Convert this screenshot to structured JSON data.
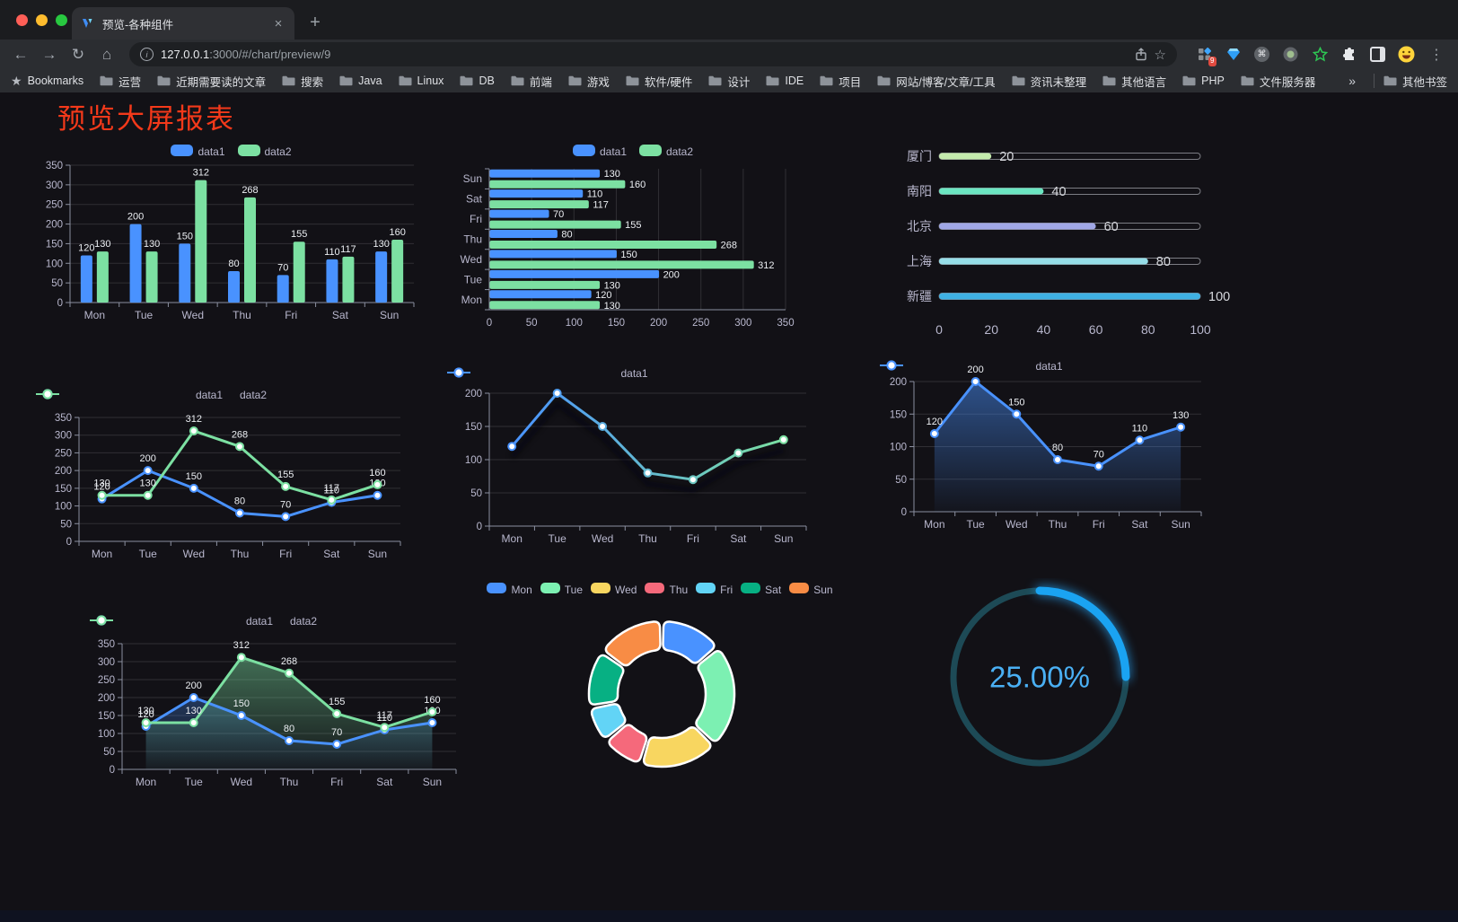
{
  "browser": {
    "tab_title": "预览-各种组件",
    "url_host": "127.0.0.1",
    "url_rest": ":3000/#/chart/preview/9",
    "extension_badge": "9",
    "bookmarks_root": "Bookmarks",
    "bookmarks": [
      "运营",
      "近期需要读的文章",
      "搜索",
      "Java",
      "Linux",
      "DB",
      "前端",
      "游戏",
      "软件/硬件",
      "设计",
      "IDE",
      "项目",
      "网站/博客/文章/工具",
      "资讯未整理",
      "其他语言",
      "PHP",
      "文件服务器"
    ],
    "bookmarks_overflow": "»",
    "other_bookmarks": "其他书签"
  },
  "icons": {
    "back": "←",
    "forward": "→",
    "reload": "↻",
    "home": "⌂",
    "star": "☆",
    "command": "⌘",
    "kebab": "⋮",
    "close": "×",
    "new_tab": "+",
    "info": "i",
    "bookmarks_star": "★"
  },
  "page": {
    "title": "预览大屏报表",
    "title_color": "#f4391a",
    "background": "#121116"
  },
  "chart_data": [
    {
      "id": "bar-grouped",
      "type": "bar",
      "categories": [
        "Mon",
        "Tue",
        "Wed",
        "Thu",
        "Fri",
        "Sat",
        "Sun"
      ],
      "series": [
        {
          "name": "data1",
          "color": "#4992ff",
          "values": [
            120,
            200,
            150,
            80,
            70,
            110,
            130
          ]
        },
        {
          "name": "data2",
          "color": "#7ce0a2",
          "values": [
            130,
            130,
            312,
            268,
            155,
            117,
            160
          ]
        }
      ],
      "ymax": 350,
      "yticks": [
        0,
        50,
        100,
        150,
        200,
        250,
        300,
        350
      ],
      "value_labels": true,
      "legend_marker": "roundRect",
      "legend_position": "top"
    },
    {
      "id": "hbar-grouped",
      "type": "hbar",
      "categories": [
        "Sun",
        "Sat",
        "Fri",
        "Thu",
        "Wed",
        "Tue",
        "Mon"
      ],
      "series": [
        {
          "name": "data1",
          "color": "#4992ff",
          "values": [
            130,
            110,
            70,
            80,
            150,
            200,
            120
          ]
        },
        {
          "name": "data2",
          "color": "#7ce0a2",
          "values": [
            160,
            117,
            155,
            268,
            312,
            130,
            130
          ]
        }
      ],
      "xmax": 350,
      "xticks": [
        0,
        50,
        100,
        150,
        200,
        250,
        300,
        350
      ],
      "value_labels": true,
      "legend_marker": "roundRect",
      "legend_position": "top"
    },
    {
      "id": "progress-bars",
      "type": "progress",
      "max": 100,
      "xticks": [
        0,
        20,
        40,
        60,
        80,
        100
      ],
      "items": [
        {
          "label": "厦门",
          "value": 20,
          "color": "#c4ebad"
        },
        {
          "label": "南阳",
          "value": 40,
          "color": "#6be6c1"
        },
        {
          "label": "北京",
          "value": 60,
          "color": "#a0a7e6"
        },
        {
          "label": "上海",
          "value": 80,
          "color": "#96dee8"
        },
        {
          "label": "新疆",
          "value": 100,
          "color": "#3fb1e3"
        }
      ]
    },
    {
      "id": "line-two-series",
      "type": "line",
      "categories": [
        "Mon",
        "Tue",
        "Wed",
        "Thu",
        "Fri",
        "Sat",
        "Sun"
      ],
      "series": [
        {
          "name": "data1",
          "color": "#4992ff",
          "values": [
            120,
            200,
            150,
            80,
            70,
            110,
            130
          ]
        },
        {
          "name": "data2",
          "color": "#7ce0a2",
          "values": [
            130,
            130,
            312,
            268,
            155,
            117,
            160
          ]
        }
      ],
      "ymax": 350,
      "yticks": [
        0,
        50,
        100,
        150,
        200,
        250,
        300,
        350
      ],
      "value_labels": true,
      "legend_marker": "lineCircle",
      "legend_position": "top"
    },
    {
      "id": "line-gradient",
      "type": "line",
      "categories": [
        "Mon",
        "Tue",
        "Wed",
        "Thu",
        "Fri",
        "Sat",
        "Sun"
      ],
      "series": [
        {
          "name": "data1",
          "color": "#4992ff",
          "color_end": "#7ce0a2",
          "gradient_stroke": true,
          "shadow": true,
          "values": [
            120,
            200,
            150,
            80,
            70,
            110,
            130
          ]
        }
      ],
      "ymax": 200,
      "yticks": [
        0,
        50,
        100,
        150,
        200
      ],
      "value_labels": false,
      "legend_marker": "lineCircle",
      "legend_position": "top"
    },
    {
      "id": "area-single",
      "type": "line",
      "categories": [
        "Mon",
        "Tue",
        "Wed",
        "Thu",
        "Fri",
        "Sat",
        "Sun"
      ],
      "series": [
        {
          "name": "data1",
          "color": "#4992ff",
          "area": true,
          "values": [
            120,
            200,
            150,
            80,
            70,
            110,
            130
          ]
        }
      ],
      "ymax": 200,
      "yticks": [
        0,
        50,
        100,
        150,
        200
      ],
      "value_labels": true,
      "legend_marker": "lineCircle",
      "legend_position": "top"
    },
    {
      "id": "area-two-series",
      "type": "line",
      "categories": [
        "Mon",
        "Tue",
        "Wed",
        "Thu",
        "Fri",
        "Sat",
        "Sun"
      ],
      "series": [
        {
          "name": "data1",
          "color": "#4992ff",
          "area": true,
          "values": [
            120,
            200,
            150,
            80,
            70,
            110,
            130
          ]
        },
        {
          "name": "data2",
          "color": "#7ce0a2",
          "area": true,
          "values": [
            130,
            130,
            312,
            268,
            155,
            117,
            160
          ]
        }
      ],
      "ymax": 350,
      "yticks": [
        0,
        50,
        100,
        150,
        200,
        250,
        300,
        350
      ],
      "value_labels": true,
      "legend_marker": "lineCircle",
      "legend_position": "top"
    },
    {
      "id": "donut",
      "type": "donut",
      "legend_marker": "roundRect",
      "legend_position": "top",
      "items": [
        {
          "label": "Mon",
          "value": 120,
          "color": "#4992ff"
        },
        {
          "label": "Tue",
          "value": 200,
          "color": "#7cf0b2"
        },
        {
          "label": "Wed",
          "value": 150,
          "color": "#f8d660"
        },
        {
          "label": "Thu",
          "value": 80,
          "color": "#f5697b"
        },
        {
          "label": "Fri",
          "value": 70,
          "color": "#62d4f6"
        },
        {
          "label": "Sat",
          "value": 110,
          "color": "#07b083"
        },
        {
          "label": "Sun",
          "value": 130,
          "color": "#f88c45"
        }
      ]
    },
    {
      "id": "gauge",
      "type": "gauge",
      "value": 25,
      "label": "25.00%",
      "color": "#1aa3f2",
      "track_color": "#1d4a56",
      "text_color": "#4ab0f4"
    }
  ]
}
